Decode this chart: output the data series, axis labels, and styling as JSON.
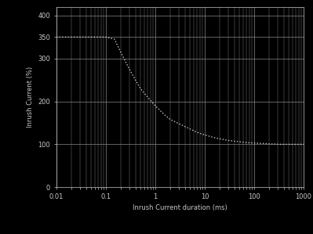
{
  "title": "",
  "xlabel": "Inrush Current duration (ms)",
  "ylabel": "Inrush Current (%)",
  "background_color": "#000000",
  "line_color": "#c8c8c8",
  "text_color": "#c8c8c8",
  "grid_color": "#888888",
  "xlim": [
    0.01,
    1000
  ],
  "ylim": [
    0,
    420
  ],
  "yticks": [
    0,
    100,
    200,
    300,
    350,
    400
  ],
  "ytick_labels": [
    "0",
    "100",
    "200",
    "300",
    "350",
    "400"
  ],
  "xticks": [
    0.01,
    0.1,
    1,
    10,
    100,
    1000
  ],
  "xtick_labels": [
    "0.01",
    "0.1",
    "1",
    "10",
    "100",
    "1000"
  ],
  "curve_x": [
    0.01,
    0.05,
    0.1,
    0.15,
    0.2,
    0.3,
    0.5,
    0.7,
    1,
    1.5,
    2,
    3,
    5,
    7,
    10,
    15,
    20,
    30,
    50,
    70,
    100,
    150,
    200,
    350,
    500,
    700,
    1000
  ],
  "curve_y": [
    350,
    350,
    350,
    345,
    315,
    275,
    230,
    210,
    190,
    170,
    158,
    148,
    136,
    128,
    122,
    116,
    113,
    109,
    106,
    104,
    103,
    102,
    101,
    100,
    100,
    100,
    100
  ],
  "line_width": 1.0,
  "font_size": 6,
  "label_font_size": 6
}
